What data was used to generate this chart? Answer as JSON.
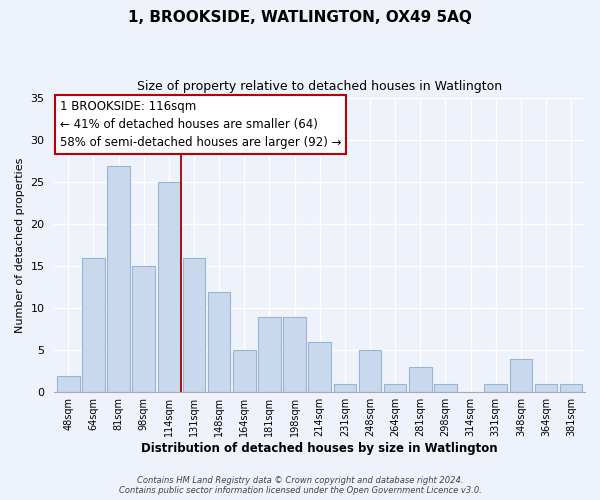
{
  "title": "1, BROOKSIDE, WATLINGTON, OX49 5AQ",
  "subtitle": "Size of property relative to detached houses in Watlington",
  "xlabel": "Distribution of detached houses by size in Watlington",
  "ylabel": "Number of detached properties",
  "categories": [
    "48sqm",
    "64sqm",
    "81sqm",
    "98sqm",
    "114sqm",
    "131sqm",
    "148sqm",
    "164sqm",
    "181sqm",
    "198sqm",
    "214sqm",
    "231sqm",
    "248sqm",
    "264sqm",
    "281sqm",
    "298sqm",
    "314sqm",
    "331sqm",
    "348sqm",
    "364sqm",
    "381sqm"
  ],
  "values": [
    2,
    16,
    27,
    15,
    25,
    16,
    12,
    5,
    9,
    9,
    6,
    1,
    5,
    1,
    3,
    1,
    0,
    1,
    4,
    1,
    1
  ],
  "bar_color": "#c8d8ed",
  "bar_edge_color": "#9ab4d4",
  "highlight_line_color": "#aa0000",
  "annotation_text": "1 BROOKSIDE: 116sqm\n← 41% of detached houses are smaller (64)\n58% of semi-detached houses are larger (92) →",
  "annotation_box_color": "#ffffff",
  "annotation_box_edge_color": "#bb0000",
  "ylim": [
    0,
    35
  ],
  "yticks": [
    0,
    5,
    10,
    15,
    20,
    25,
    30,
    35
  ],
  "footer1": "Contains HM Land Registry data © Crown copyright and database right 2024.",
  "footer2": "Contains public sector information licensed under the Open Government Licence v3.0.",
  "bg_color": "#eef2fa"
}
